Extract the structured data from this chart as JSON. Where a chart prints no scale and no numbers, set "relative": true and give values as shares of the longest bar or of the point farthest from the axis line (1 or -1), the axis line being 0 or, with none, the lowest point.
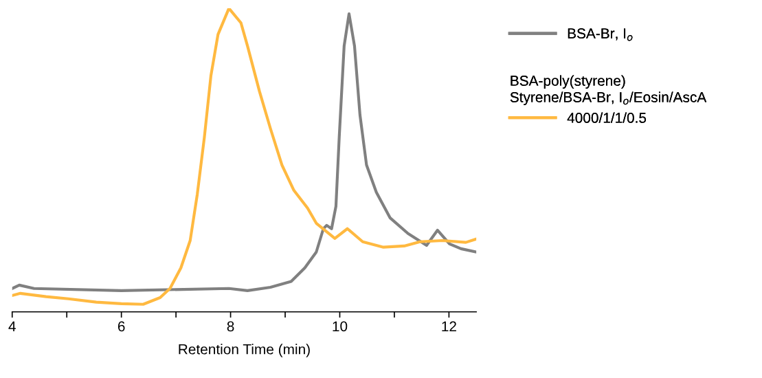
{
  "chart_data": {
    "type": "line",
    "relative": true,
    "xlabel": "Retention Time (min)",
    "xlim": [
      4,
      12.5
    ],
    "xticks": [
      4,
      {
        "value": 5,
        "label": null
      },
      6,
      {
        "value": 7,
        "label": null
      },
      8,
      {
        "value": 9,
        "label": null
      },
      10,
      {
        "value": 11,
        "label": null
      },
      12
    ],
    "legend": "right",
    "grid": false,
    "marker": "none",
    "line_style": "solid",
    "annotations": [
      "BSA-poly(styrene)\nStyrene/BSA-Br, I$_{o}$/Eosin/AscA"
    ],
    "series": [
      {
        "name": "BSA-Br, I$_{o}$",
        "color": "#808080",
        "x": [
          4,
          4.13,
          4.4,
          6.0,
          7.97,
          8.31,
          8.73,
          9.11,
          9.36,
          9.57,
          9.7,
          9.76,
          9.85,
          9.93,
          9.99,
          10.08,
          10.17,
          10.27,
          10.37,
          10.49,
          10.67,
          10.92,
          11.25,
          11.59,
          11.79,
          12.01,
          12.22,
          12.5
        ],
        "values": [
          0.077,
          0.088,
          0.077,
          0.07,
          0.077,
          0.07,
          0.081,
          0.1,
          0.145,
          0.197,
          0.274,
          0.285,
          0.274,
          0.348,
          0.575,
          0.876,
          0.982,
          0.876,
          0.649,
          0.484,
          0.394,
          0.31,
          0.258,
          0.219,
          0.269,
          0.224,
          0.208,
          0.197
        ]
      },
      {
        "name": "4000/1/1/0.5",
        "color": "#ffb940",
        "x": [
          4,
          4.15,
          4.62,
          5.03,
          5.54,
          6.0,
          6.4,
          6.71,
          6.89,
          7.09,
          7.26,
          7.39,
          7.52,
          7.64,
          7.77,
          7.97,
          8.19,
          8.31,
          8.53,
          8.73,
          8.94,
          9.16,
          9.41,
          9.57,
          9.91,
          10.14,
          10.42,
          10.8,
          11.18,
          11.47,
          11.88,
          12.31,
          12.5
        ],
        "values": [
          0.054,
          0.061,
          0.05,
          0.043,
          0.032,
          0.027,
          0.025,
          0.047,
          0.077,
          0.145,
          0.235,
          0.387,
          0.575,
          0.778,
          0.914,
          1.0,
          0.952,
          0.876,
          0.726,
          0.604,
          0.484,
          0.4,
          0.342,
          0.292,
          0.242,
          0.274,
          0.231,
          0.213,
          0.217,
          0.231,
          0.235,
          0.229,
          0.24
        ]
      }
    ]
  }
}
